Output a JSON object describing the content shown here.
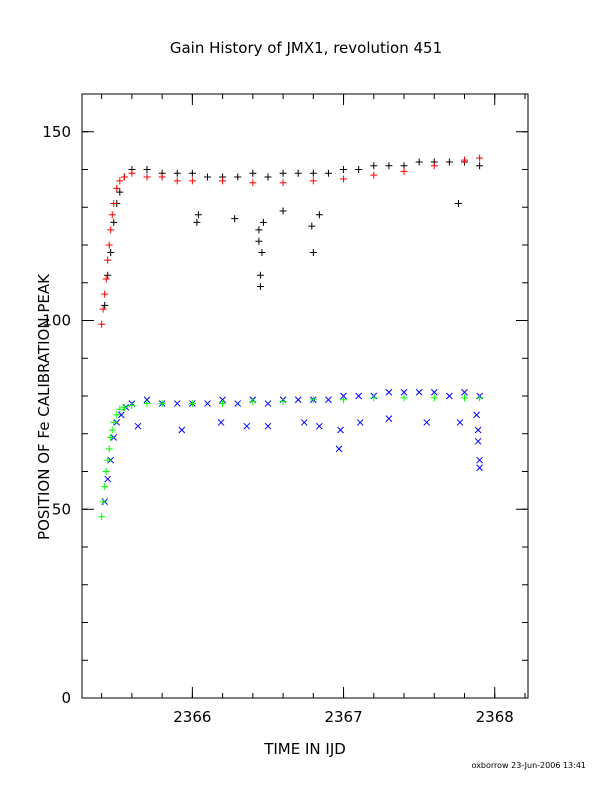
{
  "chart_data": {
    "type": "scatter",
    "title": "Gain History of JMX1, revolution 451",
    "xlabel": "TIME IN IJD",
    "ylabel": "POSITION OF Fe CALIBRATION PEAK",
    "xlim": [
      2365.27,
      2368.22
    ],
    "ylim": [
      0,
      160
    ],
    "xticks": [
      2366,
      2367,
      2368
    ],
    "xtick_labels": [
      "2366",
      "2367",
      "2368"
    ],
    "yticks": [
      0,
      50,
      100,
      150
    ],
    "ytick_labels": [
      "0",
      "50",
      "100",
      "150"
    ],
    "x_minor_step": 0.2,
    "y_minor_step": 10,
    "grid": false,
    "legend": "none",
    "series": [
      {
        "marker": "plus",
        "color": "#000000",
        "x": [
          2365.42,
          2365.44,
          2365.46,
          2365.48,
          2365.5,
          2365.52,
          2365.55,
          2365.6,
          2365.7,
          2365.8,
          2365.9,
          2366.0,
          2366.1,
          2366.2,
          2366.3,
          2366.4,
          2366.5,
          2366.6,
          2366.7,
          2366.8,
          2366.9,
          2367.0,
          2367.1,
          2367.2,
          2367.3,
          2367.4,
          2367.5,
          2367.6,
          2367.7,
          2367.8,
          2367.9
        ],
        "y": [
          104,
          112,
          118,
          126,
          131,
          134,
          138,
          140,
          140,
          139,
          139,
          139,
          138,
          138,
          138,
          139,
          138,
          139,
          139,
          139,
          139,
          140,
          140,
          141,
          141,
          141,
          142,
          142,
          142,
          142,
          141
        ]
      },
      {
        "marker": "plus",
        "color": "#000000",
        "x": [
          2366.03,
          2366.04,
          2366.28,
          2366.44,
          2366.44,
          2366.45,
          2366.45,
          2366.46,
          2366.47,
          2366.6,
          2366.79,
          2366.8,
          2366.84,
          2367.76
        ],
        "y": [
          126,
          128,
          127,
          121,
          124,
          112,
          109,
          118,
          126,
          129,
          125,
          118,
          128,
          131
        ]
      },
      {
        "marker": "plus",
        "color": "#ff0000",
        "x": [
          2365.4,
          2365.41,
          2365.42,
          2365.43,
          2365.44,
          2365.45,
          2365.46,
          2365.47,
          2365.48,
          2365.5,
          2365.52,
          2365.55,
          2365.6,
          2365.7,
          2365.8,
          2365.9,
          2366.0,
          2366.2,
          2366.4,
          2366.6,
          2366.8,
          2367.0,
          2367.2,
          2367.4,
          2367.6,
          2367.8,
          2367.9
        ],
        "y": [
          99,
          103,
          107,
          111,
          116,
          120,
          124,
          128,
          131,
          135,
          137,
          138,
          139,
          138,
          138,
          137,
          137,
          137,
          136.5,
          136.5,
          137,
          137.5,
          138.5,
          139.5,
          141,
          142.5,
          143
        ]
      },
      {
        "marker": "cross",
        "color": "#0000ff",
        "x": [
          2365.42,
          2365.44,
          2365.46,
          2365.48,
          2365.5,
          2365.53,
          2365.56,
          2365.6,
          2365.7,
          2365.8,
          2365.9,
          2366.0,
          2366.1,
          2366.2,
          2366.3,
          2366.4,
          2366.5,
          2366.6,
          2366.7,
          2366.8,
          2366.9,
          2367.0,
          2367.1,
          2367.2,
          2367.3,
          2367.4,
          2367.5,
          2367.6,
          2367.7,
          2367.8,
          2367.9
        ],
        "y": [
          52,
          58,
          63,
          69,
          73,
          75,
          77,
          78,
          79,
          78,
          78,
          78,
          78,
          79,
          78,
          79,
          78,
          79,
          79,
          79,
          79,
          80,
          80,
          80,
          81,
          81,
          81,
          81,
          80,
          81,
          80
        ]
      },
      {
        "marker": "cross",
        "color": "#0000ff",
        "x": [
          2365.64,
          2365.93,
          2366.19,
          2366.36,
          2366.5,
          2366.74,
          2366.84,
          2366.97,
          2366.98,
          2367.11,
          2367.3,
          2367.55,
          2367.77,
          2367.88,
          2367.89,
          2367.89,
          2367.9,
          2367.9
        ],
        "y": [
          72,
          71,
          73,
          72,
          72,
          73,
          72,
          66,
          71,
          73,
          74,
          73,
          73,
          75,
          71,
          68,
          63,
          61
        ]
      },
      {
        "marker": "plus",
        "color": "#00ff00",
        "x": [
          2365.4,
          2365.41,
          2365.42,
          2365.43,
          2365.44,
          2365.45,
          2365.46,
          2365.47,
          2365.48,
          2365.5,
          2365.52,
          2365.55,
          2365.6,
          2365.7,
          2365.8,
          2366.0,
          2366.2,
          2366.4,
          2366.6,
          2366.8,
          2367.0,
          2367.2,
          2367.4,
          2367.6,
          2367.8,
          2367.9
        ],
        "y": [
          48,
          52,
          56,
          60,
          63,
          66,
          69,
          71,
          73,
          75,
          76.5,
          77,
          77.5,
          78,
          78,
          78,
          78,
          78.5,
          78.5,
          79,
          79,
          79.5,
          79.5,
          79.5,
          79.5,
          79.5
        ]
      }
    ]
  },
  "footer": "oxborrow 23-Jun-2006 13:41"
}
